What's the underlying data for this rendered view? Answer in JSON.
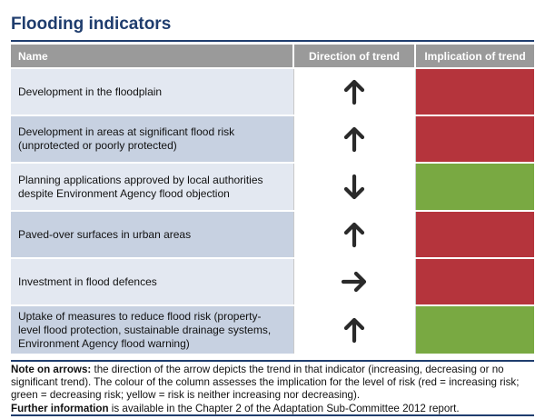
{
  "title": "Flooding indicators",
  "headers": {
    "name": "Name",
    "direction": "Direction of trend",
    "implication": "Implication of trend"
  },
  "rows": [
    {
      "name_lines": [
        "Development in the floodplain"
      ],
      "direction": "up",
      "direction_icon": "arrow-up-icon",
      "implication": "increasing risk",
      "color": "#b5343c"
    },
    {
      "name_lines": [
        "Development in areas at significant flood risk",
        "(unprotected or poorly protected)"
      ],
      "direction": "up",
      "direction_icon": "arrow-up-icon",
      "implication": "increasing risk",
      "color": "#b5343c"
    },
    {
      "name_lines": [
        "Planning applications approved by local authorities",
        "despite Environment Agency flood objection"
      ],
      "direction": "down",
      "direction_icon": "arrow-down-icon",
      "implication": "decreasing risk",
      "color": "#79a942"
    },
    {
      "name_lines": [
        "Paved-over surfaces in urban areas"
      ],
      "direction": "up",
      "direction_icon": "arrow-up-icon",
      "implication": "increasing risk",
      "color": "#b5343c"
    },
    {
      "name_lines": [
        "Investment in flood defences"
      ],
      "direction": "right",
      "direction_icon": "arrow-right-icon",
      "implication": "increasing risk",
      "color": "#b5343c"
    },
    {
      "name_lines": [
        "Uptake of measures to reduce flood risk (property-",
        "level flood protection, sustainable drainage systems,",
        "Environment Agency flood warning)"
      ],
      "direction": "up",
      "direction_icon": "arrow-up-icon",
      "implication": "decreasing risk",
      "color": "#79a942"
    }
  ],
  "note": {
    "arrows_label": "Note on arrows:",
    "arrows_text": " the direction of the arrow depicts the trend in that indicator (increasing, decreasing or no significant trend). The colour of the column assesses the implication for the level of risk (red = increasing risk; green = decreasing risk; yellow = risk is neither increasing nor decreasing).",
    "further_label": "Further information",
    "further_text": " is available in the Chapter 2 of the Adaptation Sub-Committee 2012 report."
  }
}
